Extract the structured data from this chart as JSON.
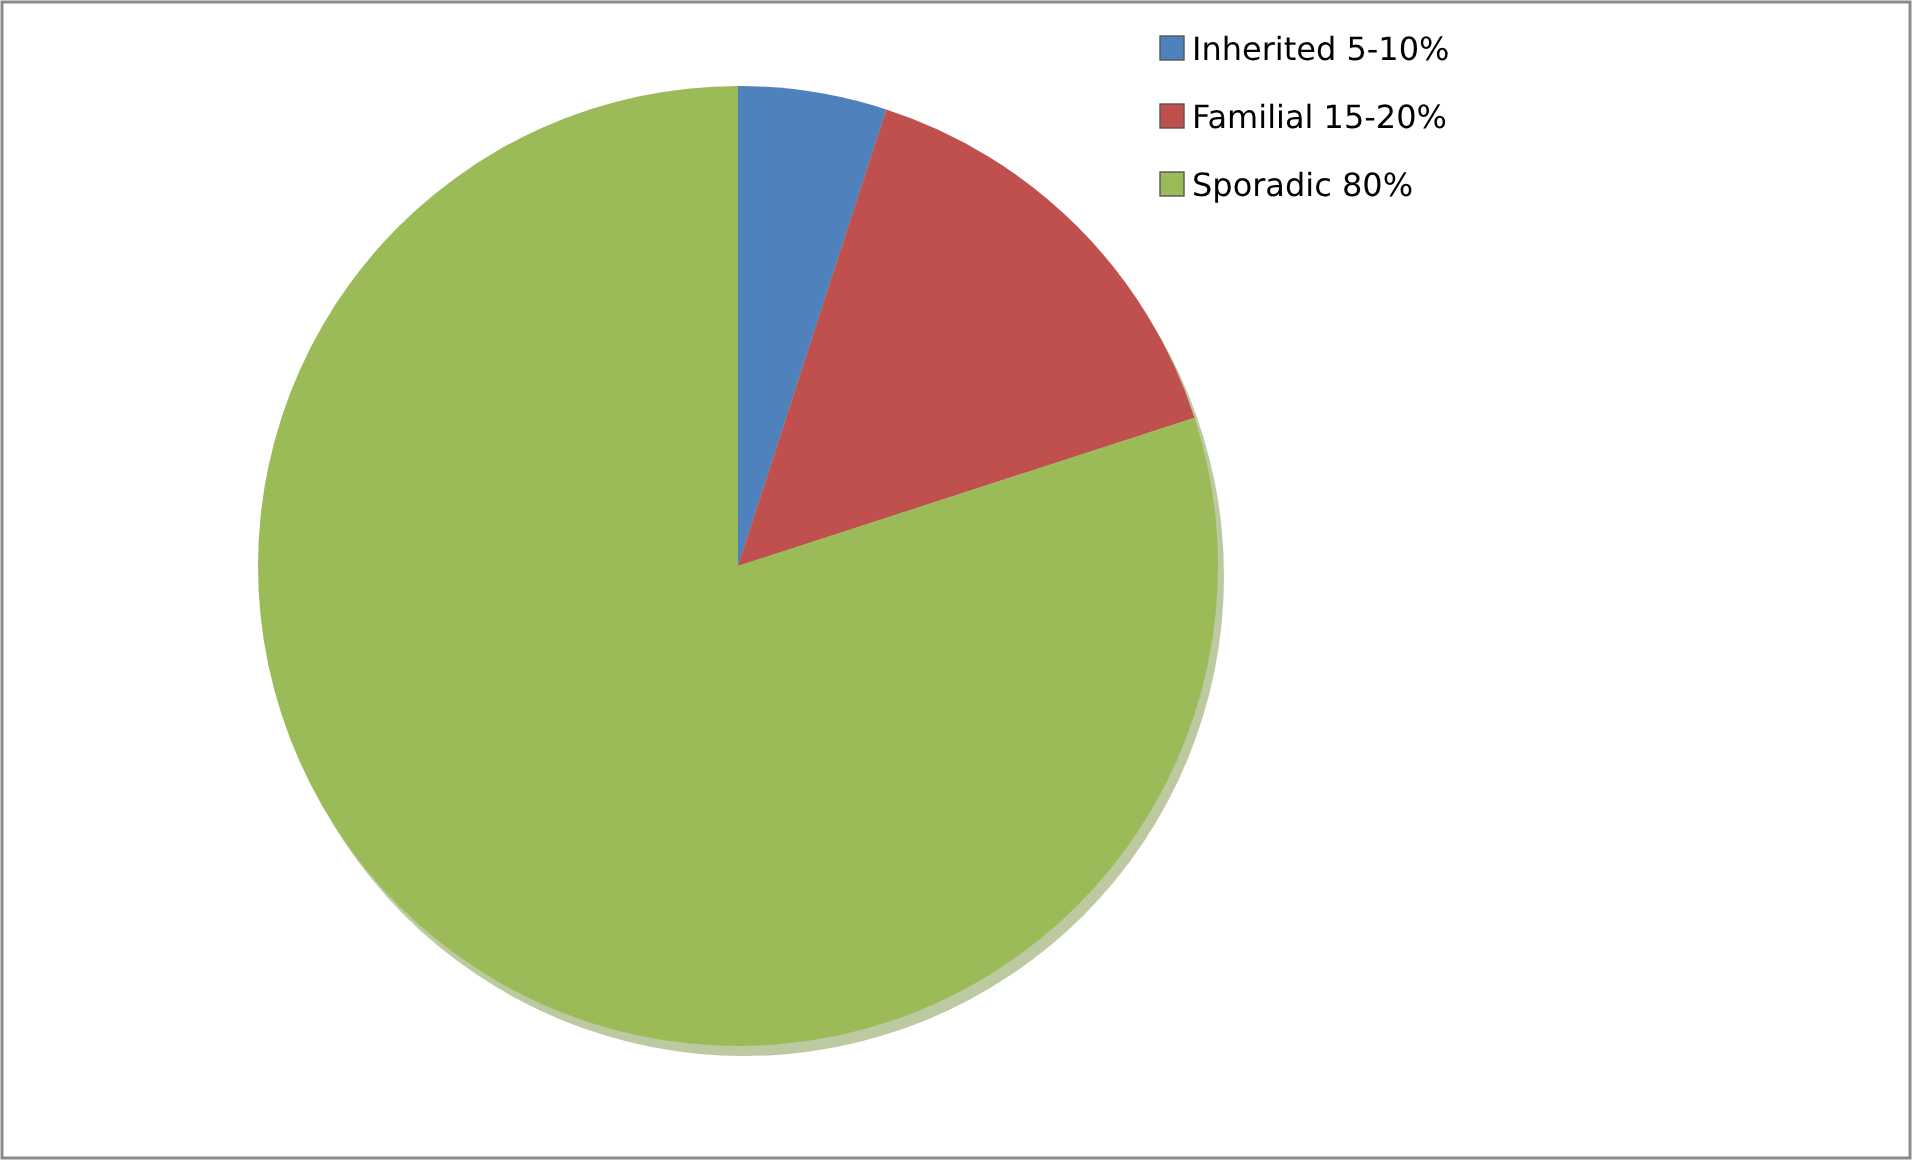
{
  "chart_data": {
    "type": "pie",
    "categories": [
      "Inherited 5-10%",
      "Familial 15-20%",
      "Sporadic 80%"
    ],
    "values": [
      5,
      15,
      80
    ],
    "colors": [
      "#4f81bd",
      "#c0504d",
      "#9bbb59"
    ],
    "legend": "top right"
  }
}
